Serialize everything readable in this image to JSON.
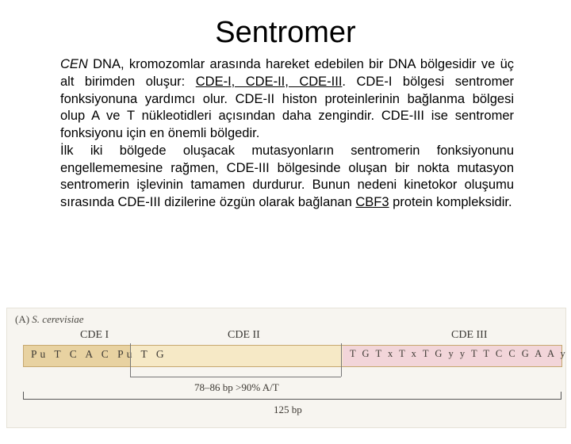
{
  "title": "Sentromer",
  "paragraphs": {
    "p1a": "CEN",
    "p1b": " DNA, kromozomlar arasında hareket edebilen bir DNA bölgesidir ve üç alt birimden oluşur: ",
    "p1c": "CDE-I, CDE-II, CDE-III",
    "p1d": ". CDE-I bölgesi sentromer fonksiyonuna yardımcı olur. CDE-II histon proteinlerinin bağlanma bölgesi olup A ve T nükleotidleri açısından daha zengindir. CDE-III ise sentromer fonksiyonu için en önemli bölgedir.",
    "p2a": "İlk iki bölgede oluşacak mutasyonların sentromerin fonksiyonunu engellememesine rağmen, CDE-III bölgesinde oluşan bir nokta mutasyon sentromerin işlevinin tamamen durdurur. Bunun nedeni kinetokor oluşumu sırasında CDE-III dizilerine özgün olarak bağlanan ",
    "p2b": "CBF3",
    "p2c": " protein kompleksidir."
  },
  "figure": {
    "panel_label_a": "(A) ",
    "panel_label_species": "S. cerevisiae",
    "regions": {
      "cde1": "CDE I",
      "cde2": "CDE II",
      "cde3": "CDE III"
    },
    "seq_left": "Pu T C A C Pu T G",
    "seq_right": "T G T x T x T G y y T T C C G A A y y y y y A A A",
    "at_label": "78–86 bp >90% A/T",
    "bp_label": "125 bp",
    "colors": {
      "cde1_bg": "#e8d2a1",
      "cde2_bg": "#f6e9c6",
      "cde3_bg": "#f2d5d9",
      "figure_bg": "#f7f5f0"
    }
  }
}
